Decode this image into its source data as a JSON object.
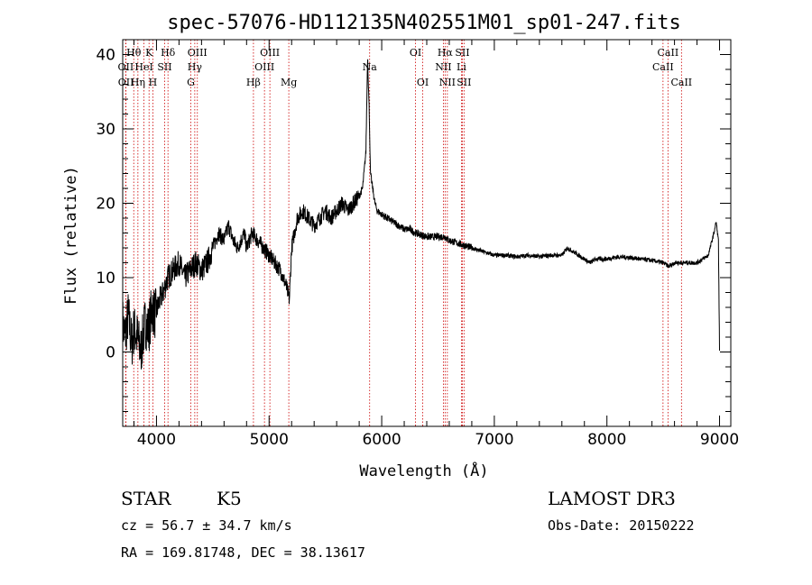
{
  "chart_data": {
    "type": "line",
    "title": "spec-57076-HD112135N402551M01_sp01-247.fits",
    "xlabel": "Wavelength (Å)",
    "ylabel": "Flux (relative)",
    "xlim": [
      3700,
      9100
    ],
    "ylim": [
      -10,
      42
    ],
    "xticks": [
      4000,
      5000,
      6000,
      7000,
      8000,
      9000
    ],
    "yticks": [
      0,
      10,
      20,
      30,
      40
    ],
    "line_color": "#000000",
    "marker_color": "#cc0000",
    "spectrum_anchors": {
      "x": [
        3700,
        3720,
        3750,
        3780,
        3800,
        3830,
        3860,
        3900,
        3930,
        3960,
        3990,
        4030,
        4060,
        4100,
        4150,
        4200,
        4250,
        4300,
        4350,
        4400,
        4450,
        4500,
        4550,
        4600,
        4640,
        4680,
        4720,
        4780,
        4800,
        4850,
        4900,
        4950,
        5000,
        5050,
        5100,
        5150,
        5180,
        5200,
        5250,
        5300,
        5350,
        5400,
        5450,
        5500,
        5550,
        5600,
        5650,
        5700,
        5750,
        5800,
        5830,
        5860,
        5875,
        5880,
        5890,
        5895,
        5900,
        5910,
        5920,
        5940,
        5960,
        6000,
        6050,
        6100,
        6150,
        6200,
        6250,
        6300,
        6400,
        6500,
        6560,
        6600,
        6700,
        6800,
        6900,
        7000,
        7100,
        7200,
        7300,
        7400,
        7500,
        7600,
        7650,
        7700,
        7800,
        7850,
        7900,
        8000,
        8100,
        8200,
        8300,
        8400,
        8500,
        8550,
        8600,
        8700,
        8800,
        8850,
        8900,
        8950,
        8970,
        8990,
        9000
      ],
      "y": [
        4,
        2,
        5,
        1,
        3,
        2,
        0,
        4,
        3,
        6,
        5,
        7,
        8,
        10,
        11,
        12,
        10,
        11,
        12,
        11,
        12,
        14,
        16,
        15,
        17,
        15,
        14,
        16,
        14,
        16,
        15,
        14,
        13,
        12,
        11,
        9,
        7,
        14,
        18,
        19,
        18,
        17,
        18,
        19,
        18,
        19,
        20,
        19,
        20,
        21,
        22,
        27,
        40,
        37,
        32,
        28,
        24,
        23,
        22,
        20,
        19,
        18.5,
        18,
        17.5,
        17,
        16.5,
        16.5,
        16,
        15.5,
        15.5,
        15.5,
        15,
        14.5,
        14,
        13.5,
        13,
        13,
        12.8,
        13,
        12.8,
        13,
        13,
        14,
        13.5,
        12.5,
        12,
        12.5,
        12.5,
        12.8,
        12.7,
        12.5,
        12.3,
        12,
        11.5,
        12,
        12,
        12,
        12.5,
        13,
        16,
        17.5,
        15,
        0
      ]
    },
    "spectral_lines": [
      {
        "name": "Hθ",
        "wavelength": 3798,
        "row": 1
      },
      {
        "name": "OII",
        "wavelength": 3727,
        "row": 2
      },
      {
        "name": "OII",
        "wavelength": 3729,
        "row": 3
      },
      {
        "name": "Hη",
        "wavelength": 3835,
        "row": 3
      },
      {
        "name": "HeI",
        "wavelength": 3889,
        "row": 2
      },
      {
        "name": "K",
        "wavelength": 3934,
        "row": 1
      },
      {
        "name": "H",
        "wavelength": 3968,
        "row": 3
      },
      {
        "name": "SII",
        "wavelength": 4072,
        "row": 2
      },
      {
        "name": "Hδ",
        "wavelength": 4102,
        "row": 1
      },
      {
        "name": "OIII",
        "wavelength": 4363,
        "row": 1
      },
      {
        "name": "Hγ",
        "wavelength": 4340,
        "row": 2
      },
      {
        "name": "G",
        "wavelength": 4305,
        "row": 3
      },
      {
        "name": "Hβ",
        "wavelength": 4861,
        "row": 3
      },
      {
        "name": "OIII",
        "wavelength": 5007,
        "row": 1
      },
      {
        "name": "OIII",
        "wavelength": 4959,
        "row": 2
      },
      {
        "name": "Mg",
        "wavelength": 5175,
        "row": 3
      },
      {
        "name": "Na",
        "wavelength": 5893,
        "row": 2
      },
      {
        "name": "OI",
        "wavelength": 6300,
        "row": 1
      },
      {
        "name": "OI",
        "wavelength": 6364,
        "row": 3
      },
      {
        "name": "Hα",
        "wavelength": 6563,
        "row": 1
      },
      {
        "name": "NII",
        "wavelength": 6548,
        "row": 2
      },
      {
        "name": "NII",
        "wavelength": 6583,
        "row": 3
      },
      {
        "name": "SII",
        "wavelength": 6716,
        "row": 1
      },
      {
        "name": "Li",
        "wavelength": 6708,
        "row": 2
      },
      {
        "name": "SII",
        "wavelength": 6731,
        "row": 3
      },
      {
        "name": "CaII",
        "wavelength": 8542,
        "row": 1
      },
      {
        "name": "CaII",
        "wavelength": 8498,
        "row": 2
      },
      {
        "name": "CaII",
        "wavelength": 8662,
        "row": 3
      }
    ]
  },
  "info": {
    "object_class": "STAR",
    "subclass": "K5",
    "survey": "LAMOST DR3",
    "redshift": "cz = 56.7 ± 34.7 km/s",
    "obs_date": "Obs-Date: 20150222",
    "coords": "RA = 169.81748, DEC =  38.13617"
  }
}
